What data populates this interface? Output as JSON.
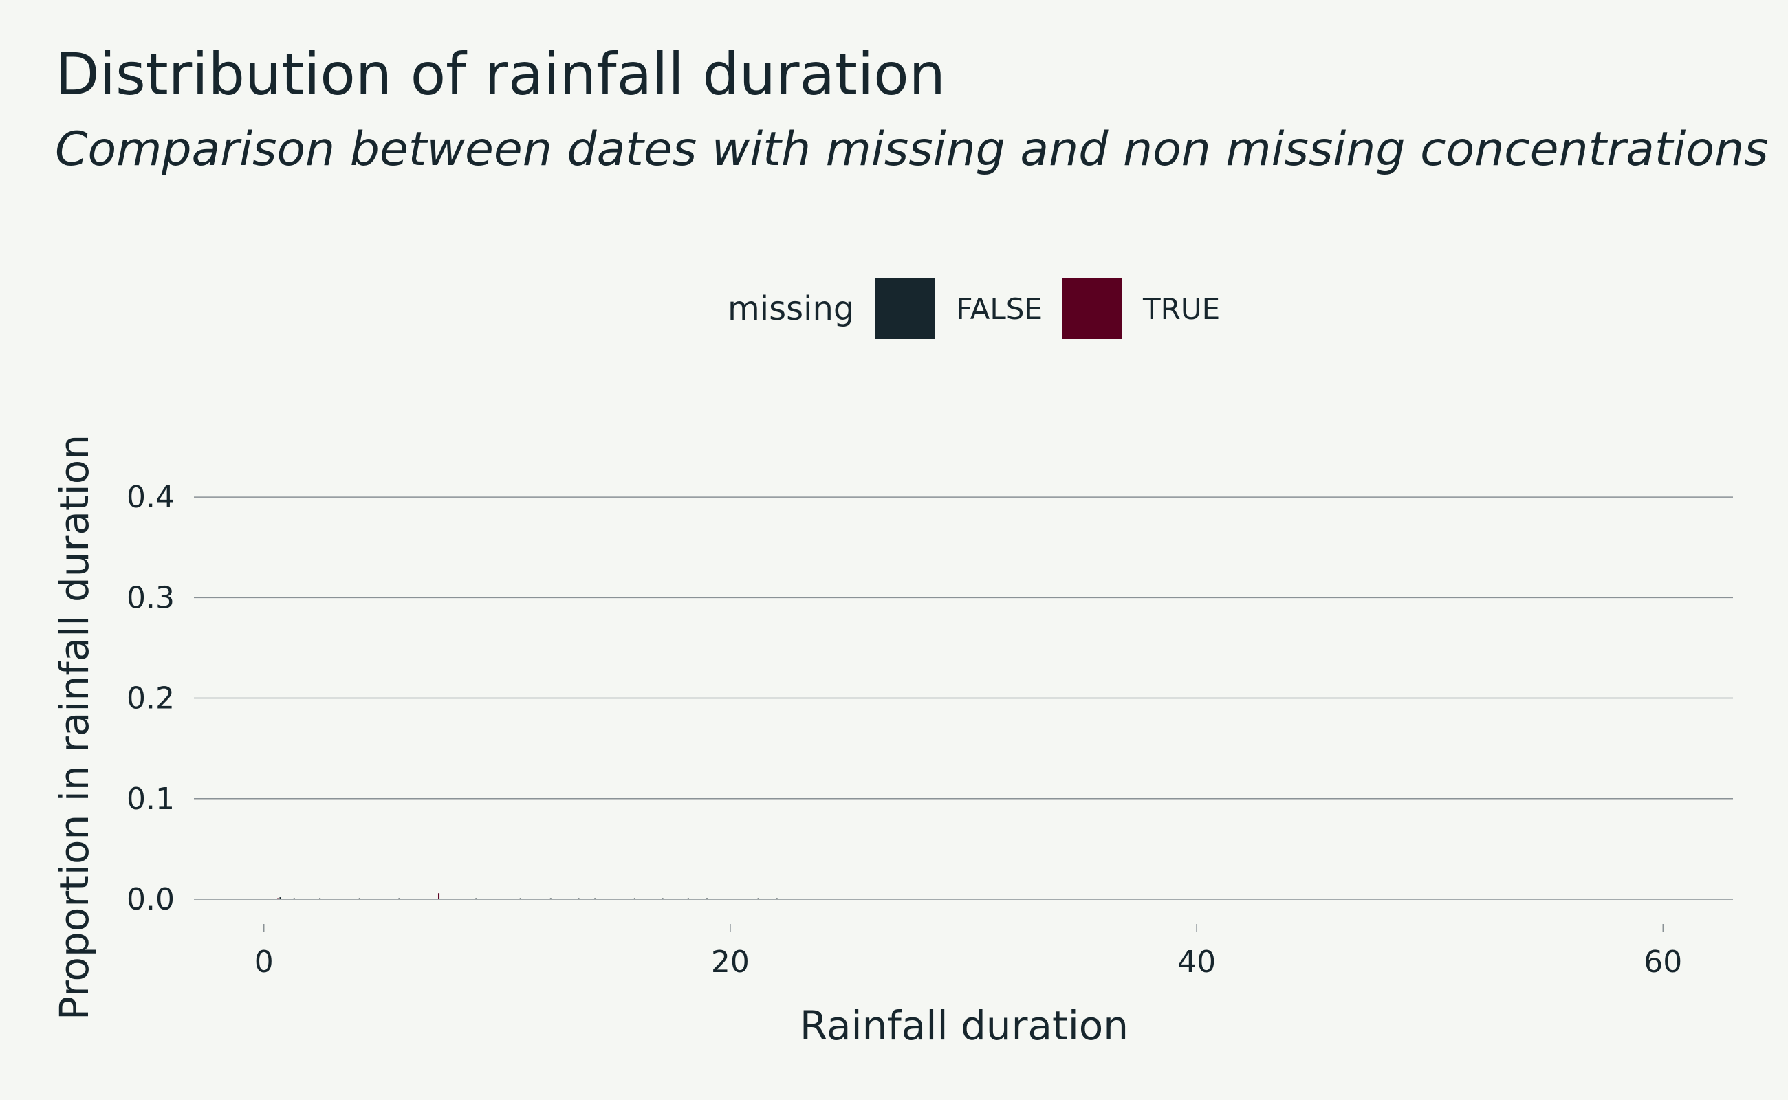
{
  "chart_data": {
    "type": "bar",
    "title": "Distribution of rainfall duration",
    "subtitle": "Comparison between dates with missing and non missing concentrations",
    "xlabel": "Rainfall duration",
    "ylabel": "Proportion in rainfall duration",
    "xlim": [
      -3,
      63
    ],
    "ylim": [
      0,
      0.45
    ],
    "x_ticks": [
      0,
      20,
      40,
      60
    ],
    "x_tick_labels": [
      "0",
      "20",
      "40",
      "60"
    ],
    "y_ticks": [
      0.0,
      0.1,
      0.2,
      0.3,
      0.4
    ],
    "y_tick_labels": [
      "0.0",
      "0.1",
      "0.2",
      "0.3",
      "0.4"
    ],
    "grid": "horizontal",
    "legend": {
      "title": "missing",
      "position": "top-center",
      "entries": [
        {
          "label": "FALSE",
          "color": "#17262d"
        },
        {
          "label": "TRUE",
          "color": "#5a0020"
        }
      ]
    },
    "series": [
      {
        "name": "FALSE",
        "color": "#17262d",
        "x": [
          0.7,
          1.3,
          2.4,
          4.1,
          5.8,
          9.1,
          11.0,
          12.3,
          13.5,
          14.2,
          15.9,
          17.1,
          18.2,
          19.0,
          21.2,
          22.0
        ],
        "values": [
          0.002,
          0.001,
          0.001,
          0.001,
          0.001,
          0.001,
          0.001,
          0.001,
          0.001,
          0.001,
          0.001,
          0.001,
          0.001,
          0.001,
          0.001,
          0.001
        ]
      },
      {
        "name": "TRUE",
        "color": "#5a0020",
        "x": [
          0.6,
          7.5
        ],
        "values": [
          0.001,
          0.006
        ]
      }
    ]
  },
  "colors": {
    "background": "#f5f7f3",
    "text": "#17262d",
    "grid": "#8a9296"
  }
}
